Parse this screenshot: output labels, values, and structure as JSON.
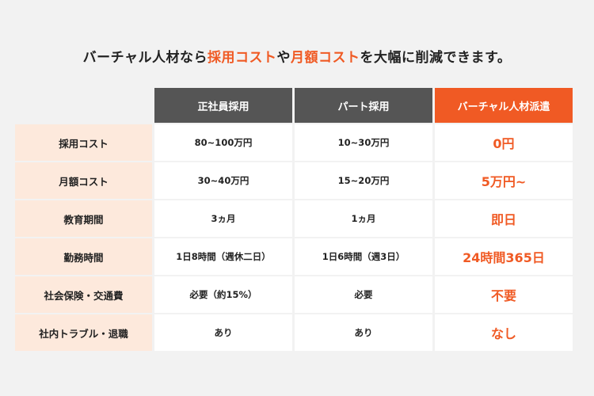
{
  "headline": {
    "p1": "バーチャル人材なら",
    "h1": "採用コスト",
    "p2": "や",
    "h2": "月額コスト",
    "p3": "を大幅に削減できます。"
  },
  "colors": {
    "accent": "#f05a24",
    "header_dark": "#555555",
    "label_bg": "#fde9dc",
    "background": "#f2f2f2"
  },
  "table": {
    "columns": [
      "正社員採用",
      "パート採用",
      "バーチャル人材派遣"
    ],
    "rows": [
      {
        "label": "採用コスト",
        "values": [
          "80~100万円",
          "10~30万円",
          "0円"
        ]
      },
      {
        "label": "月額コスト",
        "values": [
          "30~40万円",
          "15~20万円",
          "5万円~"
        ]
      },
      {
        "label": "教育期間",
        "values": [
          "3ヵ月",
          "1ヵ月",
          "即日"
        ]
      },
      {
        "label": "勤務時間",
        "values": [
          "1日8時間（週休二日）",
          "1日6時間（週3日）",
          "24時間365日"
        ]
      },
      {
        "label": "社会保険・交通費",
        "values": [
          "必要（約15%）",
          "必要",
          "不要"
        ]
      },
      {
        "label": "社内トラブル・退職",
        "values": [
          "あり",
          "あり",
          "なし"
        ]
      }
    ]
  }
}
